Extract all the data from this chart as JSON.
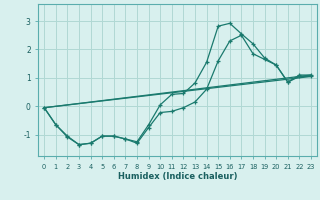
{
  "title": "",
  "xlabel": "Humidex (Indice chaleur)",
  "ylabel": "",
  "bg_color": "#d8f0ee",
  "grid_color": "#b0d8d4",
  "line_color": "#1a7a6e",
  "xlim": [
    -0.5,
    23.5
  ],
  "ylim": [
    -1.75,
    3.6
  ],
  "yticks": [
    -1,
    0,
    1,
    2,
    3
  ],
  "xticks": [
    0,
    1,
    2,
    3,
    4,
    5,
    6,
    7,
    8,
    9,
    10,
    11,
    12,
    13,
    14,
    15,
    16,
    17,
    18,
    19,
    20,
    21,
    22,
    23
  ],
  "series": {
    "line1_x": [
      0,
      1,
      2,
      3,
      4,
      5,
      6,
      7,
      8,
      9,
      10,
      11,
      12,
      13,
      14,
      15,
      16,
      17,
      18,
      19,
      20,
      21,
      22,
      23
    ],
    "line1_y": [
      -0.05,
      -0.65,
      -1.05,
      -1.35,
      -1.3,
      -1.05,
      -1.05,
      -1.15,
      -1.25,
      -0.65,
      0.05,
      0.42,
      0.45,
      0.82,
      1.55,
      2.82,
      2.92,
      2.55,
      2.2,
      1.7,
      1.45,
      0.85,
      1.1,
      1.1
    ],
    "line2_x": [
      0,
      1,
      2,
      3,
      4,
      5,
      6,
      7,
      8,
      9,
      10,
      11,
      12,
      13,
      14,
      15,
      16,
      17,
      18,
      19,
      20,
      21,
      22,
      23
    ],
    "line2_y": [
      -0.05,
      -0.65,
      -1.08,
      -1.35,
      -1.3,
      -1.05,
      -1.05,
      -1.15,
      -1.3,
      -0.75,
      -0.22,
      -0.18,
      -0.05,
      0.15,
      0.6,
      1.6,
      2.3,
      2.5,
      1.85,
      1.65,
      1.45,
      0.85,
      1.05,
      1.05
    ],
    "line3_x": [
      0,
      23
    ],
    "line3_y": [
      -0.05,
      1.1
    ],
    "line4_x": [
      0,
      23
    ],
    "line4_y": [
      -0.05,
      1.05
    ]
  }
}
